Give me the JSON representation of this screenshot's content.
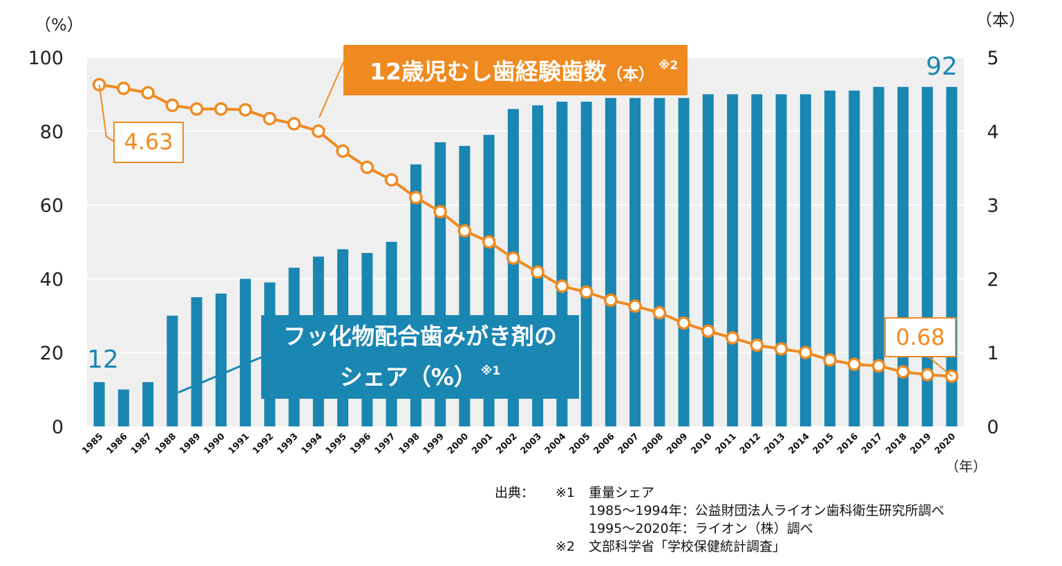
{
  "units": {
    "left": "（%）",
    "right": "（本）",
    "year": "（年）"
  },
  "y_left_ticks": [
    "0",
    "20",
    "40",
    "60",
    "80",
    "100"
  ],
  "y_right_ticks": [
    "0",
    "1",
    "2",
    "3",
    "4",
    "5"
  ],
  "callouts": {
    "caries": {
      "main": "12歳児むし歯経験歯数",
      "unit": "（本）",
      "note": "※2"
    },
    "fluoride": {
      "line1": "フッ化物配合歯みがき剤の",
      "line2": "シェア（%）",
      "note": "※1"
    }
  },
  "labels": {
    "start_share": "12",
    "end_share": "92",
    "start_caries": "4.63",
    "end_caries": "0.68"
  },
  "source": {
    "heading": "出典：",
    "note1_mark": "※1",
    "note1_text": "重量シェア",
    "line2": "1985～1994年：公益財団法人ライオン歯科衛生研究所調べ",
    "line3": "1995～2020年：ライオン（株）調べ",
    "note2_mark": "※2",
    "note2_text": "文部科学省「学校保健統計調査」"
  },
  "colors": {
    "bar": "#1a86b2",
    "line": "#ef8a21",
    "plot_bg": "#efefef",
    "grid": "#ffffff"
  },
  "chart_data": {
    "type": "bar",
    "categories": [
      "1985",
      "1986",
      "1987",
      "1988",
      "1989",
      "1990",
      "1991",
      "1992",
      "1993",
      "1994",
      "1995",
      "1996",
      "1997",
      "1998",
      "1999",
      "2000",
      "2001",
      "2002",
      "2003",
      "2004",
      "2005",
      "2006",
      "2007",
      "2008",
      "2009",
      "2010",
      "2011",
      "2012",
      "2013",
      "2014",
      "2015",
      "2016",
      "2017",
      "2018",
      "2019",
      "2020"
    ],
    "series": [
      {
        "name": "フッ化物配合歯みがき剤のシェア（%）",
        "type": "bar",
        "axis": "left",
        "values": [
          12,
          10,
          12,
          30,
          35,
          36,
          40,
          39,
          43,
          46,
          48,
          47,
          50,
          71,
          77,
          76,
          79,
          86,
          87,
          88,
          88,
          89,
          89,
          89,
          89,
          90,
          90,
          90,
          90,
          90,
          91,
          91,
          92,
          92,
          92,
          92
        ]
      },
      {
        "name": "12歳児むし歯経験歯数（本）",
        "type": "line",
        "axis": "right",
        "values": [
          4.63,
          4.58,
          4.52,
          4.35,
          4.3,
          4.3,
          4.29,
          4.17,
          4.1,
          4.0,
          3.73,
          3.51,
          3.34,
          3.1,
          2.91,
          2.65,
          2.5,
          2.28,
          2.09,
          1.9,
          1.82,
          1.71,
          1.63,
          1.54,
          1.4,
          1.29,
          1.2,
          1.1,
          1.05,
          1.0,
          0.9,
          0.84,
          0.82,
          0.74,
          0.7,
          0.68
        ]
      }
    ],
    "ylim_left": [
      0,
      100
    ],
    "ylim_right": [
      0,
      5
    ],
    "grid": true
  }
}
